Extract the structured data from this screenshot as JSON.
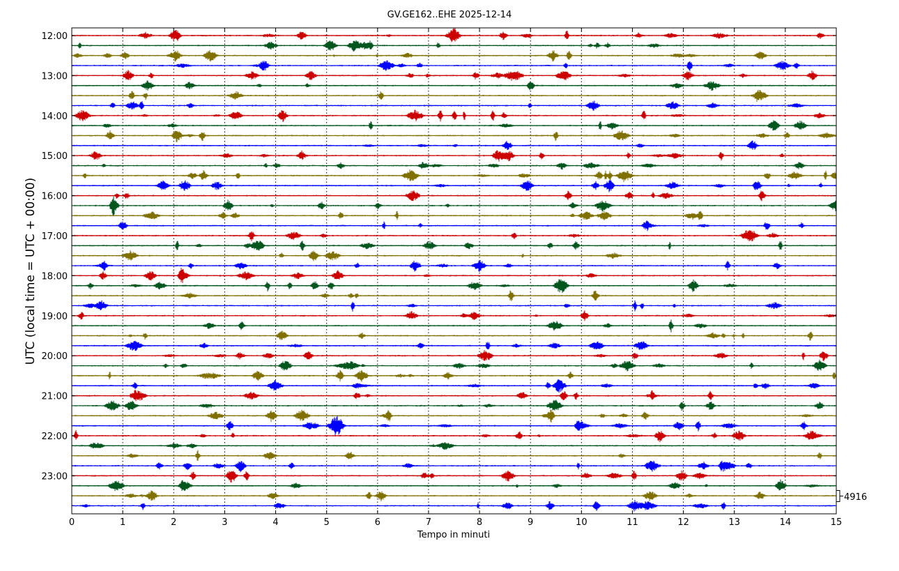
{
  "chart_data": {
    "type": "line",
    "title": "GV.GE162..EHE 2025-12-14",
    "xlabel": "Tempo in minuti",
    "ylabel": "UTC (local time = UTC + 00:00)",
    "xlim": [
      0,
      15
    ],
    "x_ticks": [
      "0",
      "1",
      "2",
      "3",
      "4",
      "5",
      "6",
      "7",
      "8",
      "9",
      "10",
      "11",
      "12",
      "13",
      "14",
      "15"
    ],
    "y_ticks": [
      "12:00",
      "13:00",
      "14:00",
      "15:00",
      "16:00",
      "17:00",
      "18:00",
      "19:00",
      "20:00",
      "21:00",
      "22:00",
      "23:00"
    ],
    "trace_start": "12:00",
    "trace_interval_minutes": 15,
    "trace_count": 48,
    "series_colors": [
      "#cc0000",
      "#00561c",
      "#807000",
      "#0000ff"
    ],
    "scale_label": "4916",
    "grid": "vertical dotted",
    "legend": "none"
  }
}
